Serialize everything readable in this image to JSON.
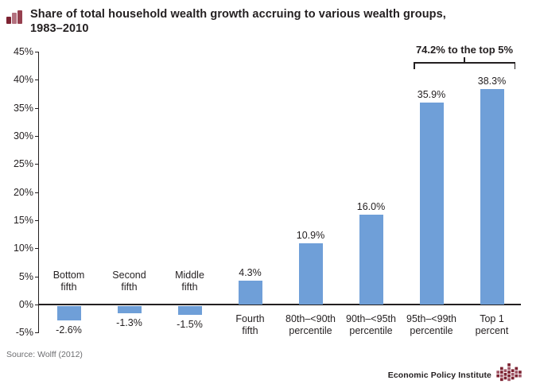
{
  "title": {
    "line1": "Share of total household wealth growth accruing to various wealth groups,",
    "line2": "1983–2010"
  },
  "chart_data": {
    "type": "bar",
    "title": "Share of total household wealth growth accruing to various wealth groups, 1983–2010",
    "categories": [
      "Bottom fifth",
      "Second fifth",
      "Middle fifth",
      "Fourth fifth",
      "80th–<90th percentile",
      "90th–<95th percentile",
      "95th–<99th percentile",
      "Top 1 percent"
    ],
    "category_label_lines": [
      [
        "Bottom",
        "fifth"
      ],
      [
        "Second",
        "fifth"
      ],
      [
        "Middle",
        "fifth"
      ],
      [
        "Fourth",
        "fifth"
      ],
      [
        "80th–<90th",
        "percentile"
      ],
      [
        "90th–<95th",
        "percentile"
      ],
      [
        "95th–<99th",
        "percentile"
      ],
      [
        "Top 1",
        "percent"
      ]
    ],
    "values": [
      -2.6,
      -1.3,
      -1.5,
      4.3,
      10.9,
      16.0,
      35.9,
      38.3
    ],
    "value_labels": [
      "-2.6%",
      "-1.3%",
      "-1.5%",
      "4.3%",
      "10.9%",
      "16.0%",
      "35.9%",
      "38.3%"
    ],
    "xlabel": "",
    "ylabel": "",
    "ylim": [
      -5,
      45
    ],
    "ytick_step": 5,
    "yticks": [
      {
        "value": 45,
        "label": "45%"
      },
      {
        "value": 40,
        "label": "40%"
      },
      {
        "value": 35,
        "label": "35%"
      },
      {
        "value": 30,
        "label": "30%"
      },
      {
        "value": 25,
        "label": "25%"
      },
      {
        "value": 20,
        "label": "20%"
      },
      {
        "value": 15,
        "label": "15%"
      },
      {
        "value": 10,
        "label": "10%"
      },
      {
        "value": 5,
        "label": "5%"
      },
      {
        "value": 0,
        "label": "0%"
      },
      {
        "value": -5,
        "label": "-5%"
      }
    ],
    "grid": "off",
    "legend": "none",
    "bar_color": "#6f9fd8",
    "annotation": {
      "text": "74.2% to the top 5%",
      "spans_categories": [
        "95th–<99th percentile",
        "Top 1 percent"
      ]
    }
  },
  "footer": {
    "source": "Source: Wolff (2012)",
    "brand": "Economic Policy Institute"
  },
  "icons": {
    "title_icon": "bar-chart-icon",
    "brand_logo": "epi-blocks-logo"
  },
  "colors": {
    "bar_blue": "#6f9fd8",
    "maroon_dark": "#7d2332",
    "maroon_light": "#b3717f",
    "maroon_mid": "#96404f",
    "text": "#231f20",
    "source_gray": "#6d6e71"
  }
}
